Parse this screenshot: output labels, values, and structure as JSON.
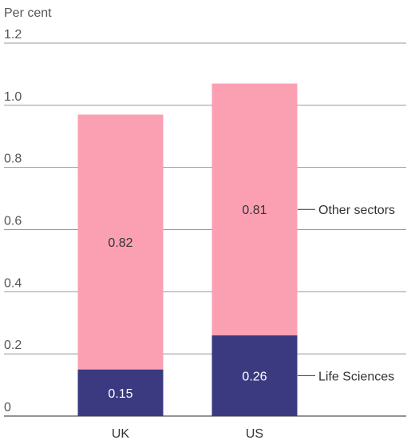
{
  "chart_data": {
    "type": "bar",
    "stacked": true,
    "ylabel": "Per cent",
    "ylim": [
      0,
      1.2
    ],
    "yticks": [
      "0",
      "0.2",
      "0.4",
      "0.6",
      "0.8",
      "1.0",
      "1.2"
    ],
    "grid": true,
    "categories": [
      "UK",
      "US"
    ],
    "series": [
      {
        "name": "Life Sciences",
        "values": [
          0.15,
          0.26
        ],
        "labels": [
          "0.15",
          "0.26"
        ],
        "color": "#3b3a80",
        "label_color": "#ffffff"
      },
      {
        "name": "Other sectors",
        "values": [
          0.82,
          0.81
        ],
        "labels": [
          "0.82",
          "0.81"
        ],
        "color": "#fba0b3",
        "label_color": "#333333"
      }
    ],
    "legend_placement": "right, beside US bar",
    "grid_color": "#9a9a9a",
    "axis_color": "#555555"
  }
}
